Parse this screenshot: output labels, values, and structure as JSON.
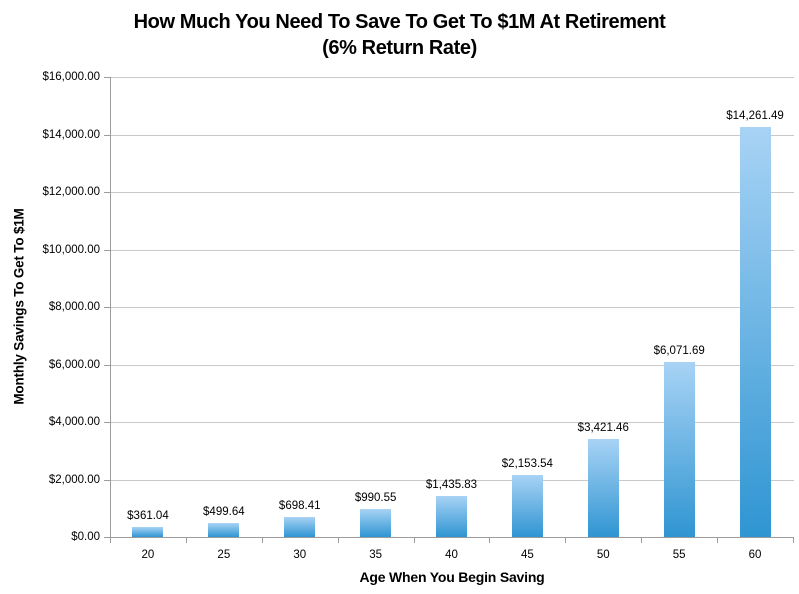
{
  "title": {
    "line1": "How Much You Need To Save To Get To $1M At Retirement",
    "line2": "(6% Return Rate)"
  },
  "chart_data": {
    "type": "bar",
    "title": "How Much You Need To Save To Get To $1M At Retirement (6% Return Rate)",
    "categories": [
      "20",
      "25",
      "30",
      "35",
      "40",
      "45",
      "50",
      "55",
      "60"
    ],
    "values": [
      361.04,
      499.64,
      698.41,
      990.55,
      1435.83,
      2153.54,
      3421.46,
      6071.69,
      14261.49
    ],
    "data_labels": [
      "$361.04",
      "$499.64",
      "$698.41",
      "$990.55",
      "$1,435.83",
      "$2,153.54",
      "$3,421.46",
      "$6,071.69",
      "$14,261.49"
    ],
    "xlabel": "Age When You Begin Saving",
    "ylabel": "Monthly Savings To Get To $1M",
    "ylim": [
      0,
      16000
    ],
    "ytick_interval": 2000,
    "ytick_labels": [
      "$0.00",
      "$2,000.00",
      "$4,000.00",
      "$6,000.00",
      "$8,000.00",
      "$10,000.00",
      "$12,000.00",
      "$14,000.00",
      "$16,000.00"
    ],
    "grid": true,
    "legend": "none",
    "colors": {
      "bar_gradient_top": "#a8d3f5",
      "bar_gradient_bottom": "#2f95d2",
      "gridline": "#c9c9c9",
      "axis": "#9c9c9c",
      "text": "#000000"
    }
  }
}
